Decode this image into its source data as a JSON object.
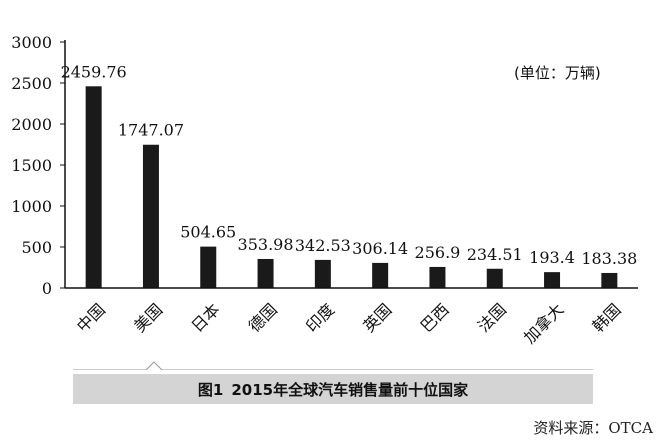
{
  "chart_data": {
    "type": "bar",
    "categories": [
      "中国",
      "美国",
      "日本",
      "德国",
      "印度",
      "英国",
      "巴西",
      "法国",
      "加拿大",
      "韩国"
    ],
    "values": [
      2459.76,
      1747.07,
      504.65,
      353.98,
      342.53,
      306.14,
      256.9,
      234.51,
      193.4,
      183.38
    ],
    "value_labels": [
      "2459.76",
      "1747.07",
      "504.65",
      "353.98",
      "342.53",
      "306.14",
      "256.9",
      "234.51",
      "193.4",
      "183.38"
    ],
    "yticks": [
      "0",
      "500",
      "1000",
      "1500",
      "2000",
      "2500",
      "3000"
    ],
    "ylim": [
      0,
      3000
    ],
    "unit_label": "(单位：万辆)",
    "grid": false,
    "bar_color": "#1a1a1a"
  },
  "caption": {
    "number": "图1",
    "text": "2015年全球汽车销售量前十位国家"
  },
  "source": "资料来源：OTCA"
}
